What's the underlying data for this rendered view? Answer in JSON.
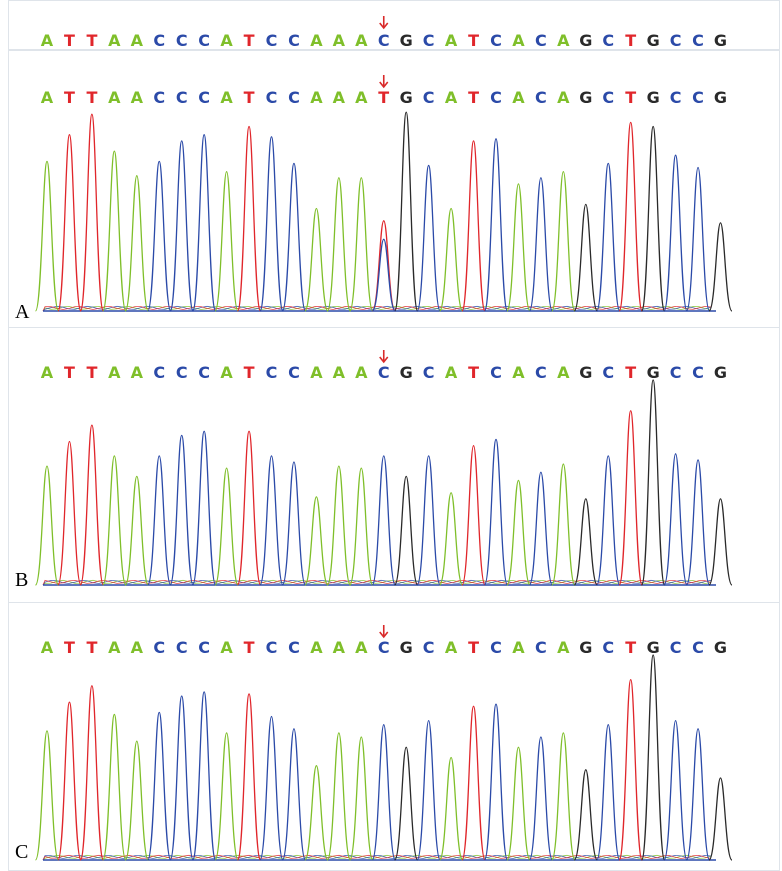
{
  "reference_sequence": [
    "A",
    "T",
    "T",
    "A",
    "A",
    "C",
    "C",
    "C",
    "A",
    "T",
    "C",
    "C",
    "A",
    "A",
    "A",
    "C",
    "G",
    "C",
    "A",
    "T",
    "C",
    "A",
    "C",
    "A",
    "G",
    "C",
    "T",
    "G",
    "C",
    "C",
    "G"
  ],
  "variant_index": 15,
  "base_colors": {
    "A": "#7fbf2a",
    "T": "#e0262b",
    "C": "#2b4aa8",
    "G": "#2a2a2a"
  },
  "marker_color": "#d92a2a",
  "panels": [
    {
      "label": "A",
      "sequence": [
        "A",
        "T",
        "T",
        "A",
        "A",
        "C",
        "C",
        "C",
        "A",
        "T",
        "C",
        "C",
        "A",
        "A",
        "A",
        "T",
        "G",
        "C",
        "A",
        "T",
        "C",
        "A",
        "C",
        "A",
        "G",
        "C",
        "T",
        "G",
        "C",
        "C",
        "G"
      ],
      "heights": [
        0.73,
        0.86,
        0.96,
        0.78,
        0.66,
        0.73,
        0.83,
        0.86,
        0.68,
        0.9,
        0.85,
        0.72,
        0.5,
        0.65,
        0.65,
        0.44,
        0.97,
        0.71,
        0.5,
        0.83,
        0.84,
        0.62,
        0.65,
        0.68,
        0.52,
        0.72,
        0.92,
        0.9,
        0.76,
        0.7,
        0.43
      ],
      "secondary": {
        "index": 15,
        "base": "C",
        "height": 0.35
      }
    },
    {
      "label": "B",
      "sequence": [
        "A",
        "T",
        "T",
        "A",
        "A",
        "C",
        "C",
        "C",
        "A",
        "T",
        "C",
        "C",
        "A",
        "A",
        "A",
        "C",
        "G",
        "C",
        "A",
        "T",
        "C",
        "A",
        "C",
        "A",
        "G",
        "C",
        "T",
        "G",
        "C",
        "C",
        "G"
      ],
      "heights": [
        0.58,
        0.7,
        0.78,
        0.63,
        0.53,
        0.63,
        0.73,
        0.75,
        0.57,
        0.75,
        0.63,
        0.6,
        0.43,
        0.58,
        0.57,
        0.63,
        0.53,
        0.63,
        0.45,
        0.68,
        0.71,
        0.51,
        0.55,
        0.59,
        0.42,
        0.63,
        0.85,
        1.0,
        0.64,
        0.61,
        0.42
      ],
      "secondary": null
    },
    {
      "label": "C",
      "sequence": [
        "A",
        "T",
        "T",
        "A",
        "A",
        "C",
        "C",
        "C",
        "A",
        "T",
        "C",
        "C",
        "A",
        "A",
        "A",
        "C",
        "G",
        "C",
        "A",
        "T",
        "C",
        "A",
        "C",
        "A",
        "G",
        "C",
        "T",
        "G",
        "C",
        "C",
        "G"
      ],
      "heights": [
        0.63,
        0.77,
        0.85,
        0.71,
        0.58,
        0.72,
        0.8,
        0.82,
        0.62,
        0.81,
        0.7,
        0.64,
        0.46,
        0.62,
        0.6,
        0.66,
        0.55,
        0.68,
        0.5,
        0.75,
        0.76,
        0.55,
        0.6,
        0.62,
        0.44,
        0.66,
        0.88,
        1.0,
        0.68,
        0.64,
        0.4
      ],
      "secondary": null
    }
  ]
}
